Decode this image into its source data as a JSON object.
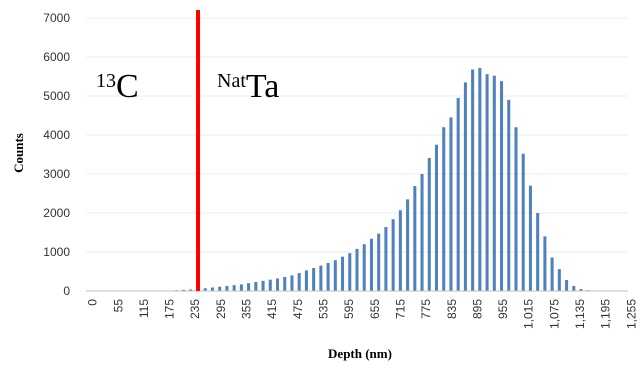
{
  "chart_data": {
    "type": "bar",
    "title": "",
    "xlabel": "Depth (nm)",
    "ylabel": "Counts",
    "ylim": [
      0,
      7000
    ],
    "yticks": [
      0,
      1000,
      2000,
      3000,
      4000,
      5000,
      6000,
      7000
    ],
    "ytick_labels": [
      "0",
      "1000",
      "2000",
      "3000",
      "4000",
      "5000",
      "6000",
      "7000"
    ],
    "xtick_labels": [
      "0",
      "55",
      "115",
      "175",
      "235",
      "295",
      "355",
      "415",
      "475",
      "535",
      "595",
      "655",
      "715",
      "775",
      "835",
      "895",
      "955",
      "1,015",
      "1,075",
      "1,135",
      "1,195",
      "1,255"
    ],
    "bar_color": "#4f81bd",
    "series": [
      {
        "values": [
          10,
          10,
          10,
          10,
          10,
          10,
          10,
          10,
          10,
          10,
          10,
          10,
          20,
          30,
          40,
          50,
          70,
          90,
          110,
          130,
          150,
          170,
          200,
          230,
          260,
          290,
          320,
          360,
          400,
          460,
          530,
          590,
          650,
          720,
          790,
          880,
          970,
          1080,
          1200,
          1340,
          1470,
          1640,
          1840,
          2070,
          2350,
          2690,
          3000,
          3410,
          3750,
          4200,
          4450,
          4950,
          5350,
          5680,
          5720,
          5560,
          5520,
          5380,
          4900,
          4200,
          3520,
          2700,
          2000,
          1400,
          860,
          560,
          280,
          130,
          50,
          20,
          10,
          10,
          10,
          10,
          10
        ]
      }
    ],
    "marker_line": {
      "after_bar_index": 15,
      "color": "#ff0000"
    },
    "annotations": [
      {
        "sup": "13",
        "main": "C"
      },
      {
        "sup": "Nat",
        "main": "Ta"
      }
    ]
  }
}
